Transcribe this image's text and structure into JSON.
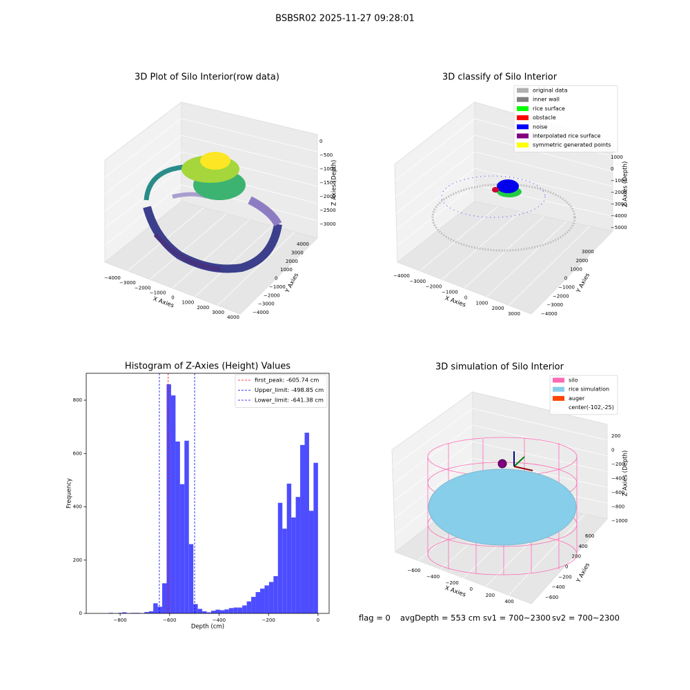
{
  "title": "BSBSR02 2025-11-27 09:28:01",
  "chart_data": [
    {
      "type": "scatter3d",
      "title": "3D Plot of Silo Interior(row data)",
      "x_label": "X Axies",
      "y_label": "Y Axies",
      "z_label": "Z Axies (Depth)",
      "x_tick_labels": [
        "−4000",
        "−3000",
        "−2000",
        "−1000",
        "0",
        "1000",
        "2000",
        "3000",
        "4000"
      ],
      "y_tick_labels": [
        "−4000",
        "−3000",
        "−2000",
        "−1000",
        "0",
        "1000",
        "2000",
        "3000",
        "4000"
      ],
      "z_tick_labels": [
        "0",
        "−500",
        "−1000",
        "−1500",
        "−2000",
        "−2500",
        "−3000"
      ]
    },
    {
      "type": "scatter3d",
      "title": "3D classify of Silo Interior",
      "x_label": "X Axies",
      "y_label": "Y Axies",
      "z_label": "Z Axies (Depth)",
      "x_tick_labels": [
        "−4000",
        "−3000",
        "−2000",
        "−1000",
        "0",
        "1000",
        "2000",
        "3000"
      ],
      "y_tick_labels": [
        "−4000",
        "−3000",
        "−2000",
        "−1000",
        "0",
        "1000",
        "2000",
        "3000"
      ],
      "z_tick_labels": [
        "1000",
        "0",
        "−1000",
        "−2000",
        "−3000",
        "−4000",
        "−5000"
      ],
      "legend": [
        {
          "name": "original data",
          "color": "#b0b0b0"
        },
        {
          "name": "inner wall",
          "color": "#808080"
        },
        {
          "name": "rice surface",
          "color": "#00ff00"
        },
        {
          "name": "obstacle",
          "color": "#ff0000"
        },
        {
          "name": "noise",
          "color": "#0000ff"
        },
        {
          "name": "interpolated rice surface",
          "color": "#800080"
        },
        {
          "name": "symmetric generated points",
          "color": "#ffff00"
        }
      ]
    },
    {
      "type": "histogram",
      "title": "Histogram of Z-Axies (Height) Values",
      "x_label": "Depth (cm)",
      "y_label": "Frequency",
      "color": "#4d4dff",
      "bins": [
        -900,
        -882,
        -864,
        -846,
        -828,
        -810,
        -792,
        -774,
        -756,
        -738,
        -720,
        -702,
        -684,
        -666,
        -648,
        -630,
        -612,
        -594,
        -576,
        -558,
        -540,
        -522,
        -504,
        -486,
        -468,
        -450,
        -432,
        -414,
        -396,
        -378,
        -360,
        -342,
        -324,
        -306,
        -288,
        -270,
        -252,
        -234,
        -216,
        -198,
        -180,
        -162,
        -144,
        -126,
        -108,
        -90,
        -72,
        -54,
        -36,
        -18,
        0
      ],
      "counts": [
        0,
        0,
        0,
        2,
        0,
        2,
        4,
        1,
        2,
        2,
        1,
        5,
        8,
        38,
        25,
        113,
        860,
        818,
        645,
        485,
        648,
        260,
        35,
        17,
        8,
        4,
        10,
        14,
        12,
        15,
        20,
        22,
        22,
        30,
        45,
        62,
        80,
        93,
        105,
        118,
        140,
        415,
        318,
        487,
        360,
        437,
        632,
        678,
        385,
        565
      ],
      "xlim": [
        -937,
        45
      ],
      "ylim": [
        0,
        901
      ],
      "xticks": [
        {
          "value": -800,
          "label": "−800"
        },
        {
          "value": -600,
          "label": "−600"
        },
        {
          "value": -400,
          "label": "−400"
        },
        {
          "value": -200,
          "label": "−200"
        },
        0
      ],
      "yticks": [
        0,
        200,
        400,
        600,
        800
      ],
      "vlines": [
        {
          "name": "first_peak: -605.74 cm",
          "value": -605.74,
          "color": "#ff0000"
        },
        {
          "name": "Upper_limit: -498.85 cm",
          "value": -498.85,
          "color": "#0000ff"
        },
        {
          "name": "Lower_limit: -641.38 cm",
          "value": -641.38,
          "color": "#0000ff"
        }
      ]
    },
    {
      "type": "surface3d",
      "title": "3D simulation of Silo Interior",
      "x_label": "X Axies",
      "y_label": "Y Axies",
      "z_label": "Z Axies (Depth)",
      "x_tick_labels": [
        "−600",
        "−400",
        "−200",
        "0",
        "200",
        "400"
      ],
      "y_tick_labels": [
        "−600",
        "−400",
        "−200",
        "0",
        "200",
        "400",
        "600"
      ],
      "z_tick_labels": [
        "200",
        "0",
        "−200",
        "−400",
        "−600",
        "−800",
        "−1000"
      ],
      "legend": [
        {
          "name": "silo",
          "color": "#ff69b4"
        },
        {
          "name": "rice simulation",
          "color": "#87ceeb"
        },
        {
          "name": "auger",
          "color": "#ff4500"
        },
        {
          "name": "center(-102,-25)"
        }
      ]
    }
  ],
  "footer": [
    "flag = 0",
    "avgDepth = 553 cm",
    "sv1 = 700~2300",
    "sv2 = 700~2300"
  ]
}
